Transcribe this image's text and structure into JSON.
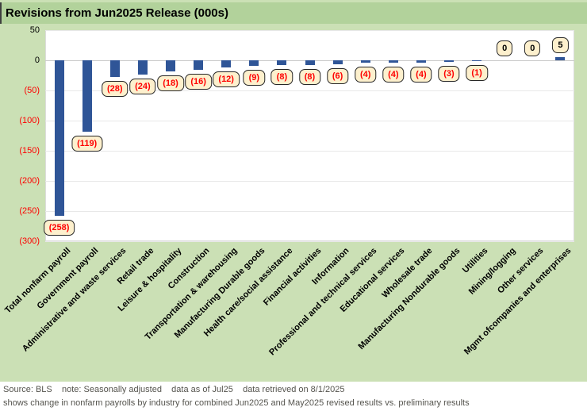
{
  "title": "Revisions from Jun2025 Release (000s)",
  "footer": {
    "line1": "Source: BLS    note: Seasonally adjusted    data as of Jul25    data retrieved on 8/1/2025",
    "line2": "shows change in nonfarm payrolls by industry for combined Jun2025 and May2025 revised results vs. preliminary results"
  },
  "colors": {
    "background_green": "#cbe0b5",
    "title_band_green": "#b2d29b",
    "bar_blue": "#2f5597",
    "label_box_fill": "#fdf0cd",
    "label_box_border": "#262626",
    "negative_red": "#fe0000",
    "footer_text": "#55544e"
  },
  "chart_data": {
    "type": "bar",
    "title": "Revisions from Jun2025 Release (000s)",
    "categories": [
      "Total nonfarm payroll",
      "Government payroll",
      "Administrative and waste services",
      "Retail trade",
      "Leisure & hospitality",
      "Construction",
      "Transportation & warehousing",
      "Manufacturing Durable goods",
      "Health care/social assistance",
      "Financial activities",
      "Information",
      "Professional and technical services",
      "Educational services",
      "Wholesale trade",
      "Manufacturing Nondurable goods",
      "Utilities",
      "Mining/logging",
      "Other services",
      "Mgmt ofcompanies and enterprises"
    ],
    "values": [
      -258,
      -119,
      -28,
      -24,
      -18,
      -16,
      -12,
      -9,
      -8,
      -8,
      -6,
      -4,
      -4,
      -4,
      -3,
      -1,
      0,
      0,
      5
    ],
    "data_labels": [
      "(258)",
      "(119)",
      "(28)",
      "(24)",
      "(18)",
      "(16)",
      "(12)",
      "(9)",
      "(8)",
      "(8)",
      "(6)",
      "(4)",
      "(4)",
      "(4)",
      "(3)",
      "(1)",
      "0",
      "0",
      "5"
    ],
    "xlabel": "",
    "ylabel": "",
    "ylim": [
      -300,
      50
    ],
    "yticks": [
      {
        "value": 50,
        "label": "50"
      },
      {
        "value": 0,
        "label": "0"
      },
      {
        "value": -50,
        "label": "(50)"
      },
      {
        "value": -100,
        "label": "(100)"
      },
      {
        "value": -150,
        "label": "(150)"
      },
      {
        "value": -200,
        "label": "(200)"
      },
      {
        "value": -250,
        "label": "(250)"
      },
      {
        "value": -300,
        "label": "(300)"
      }
    ],
    "grid": true,
    "legend": false,
    "bar_color": "#2f5597",
    "negative_label_color": "#fe0000",
    "positive_label_color": "#000000"
  }
}
